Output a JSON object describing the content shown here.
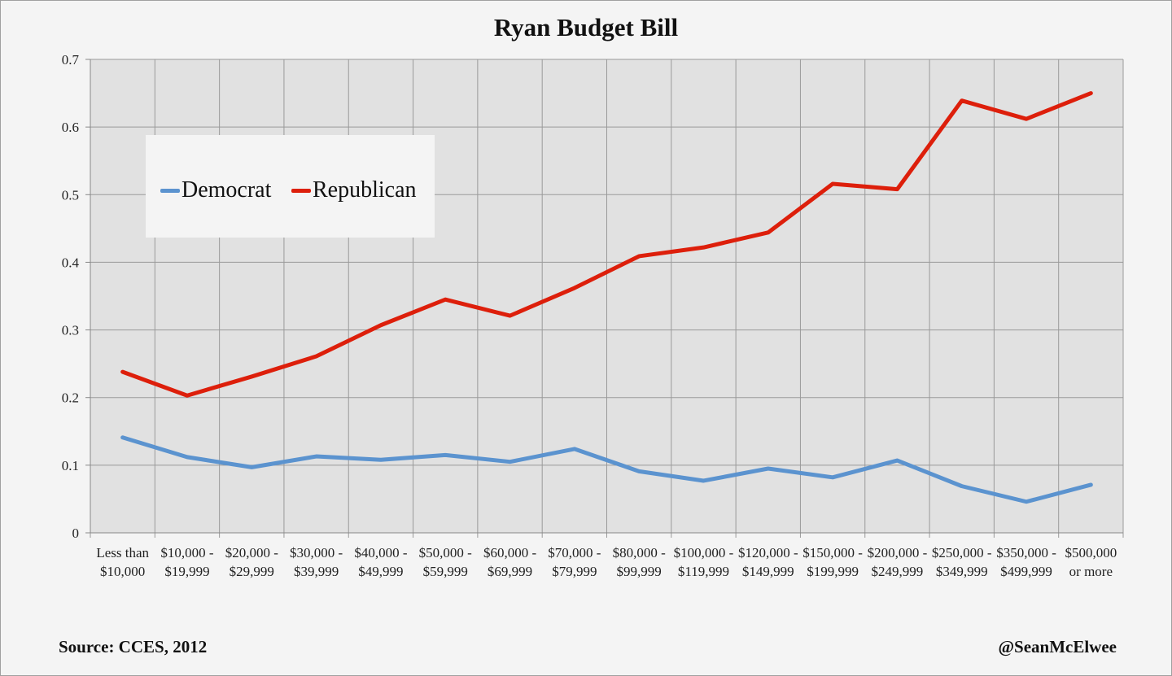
{
  "chart_data": {
    "type": "line",
    "title": "Ryan Budget Bill",
    "xlabel": "",
    "ylabel": "",
    "ylim": [
      0,
      0.7
    ],
    "yticks": [
      "0",
      "0.1",
      "0.2",
      "0.3",
      "0.4",
      "0.5",
      "0.6",
      "0.7"
    ],
    "grid": true,
    "legend_position": "top-left",
    "categories": [
      [
        "Less than",
        "$10,000"
      ],
      [
        "$10,000 -",
        "$19,999"
      ],
      [
        "$20,000 -",
        "$29,999"
      ],
      [
        "$30,000 -",
        "$39,999"
      ],
      [
        "$40,000 -",
        "$49,999"
      ],
      [
        "$50,000 -",
        "$59,999"
      ],
      [
        "$60,000 -",
        "$69,999"
      ],
      [
        "$70,000 -",
        "$79,999"
      ],
      [
        "$80,000 -",
        "$99,999"
      ],
      [
        "$100,000 -",
        "$119,999"
      ],
      [
        "$120,000 -",
        "$149,999"
      ],
      [
        "$150,000 -",
        "$199,999"
      ],
      [
        "$200,000 -",
        "$249,999"
      ],
      [
        "$250,000 -",
        "$349,999"
      ],
      [
        "$350,000 -",
        "$499,999"
      ],
      [
        "$500,000",
        "or more"
      ]
    ],
    "series": [
      {
        "name": "Democrat",
        "color": "#5b93cf",
        "values": [
          0.141,
          0.112,
          0.097,
          0.113,
          0.108,
          0.115,
          0.105,
          0.124,
          0.091,
          0.077,
          0.095,
          0.082,
          0.107,
          0.069,
          0.046,
          0.071
        ]
      },
      {
        "name": "Republican",
        "color": "#dd1f0b",
        "values": [
          0.238,
          0.203,
          0.231,
          0.261,
          0.307,
          0.345,
          0.321,
          0.362,
          0.409,
          0.422,
          0.444,
          0.516,
          0.508,
          0.639,
          0.612,
          0.65
        ]
      }
    ]
  },
  "footer": {
    "source": "Source: CCES, 2012",
    "author": "@SeanMcElwee"
  }
}
